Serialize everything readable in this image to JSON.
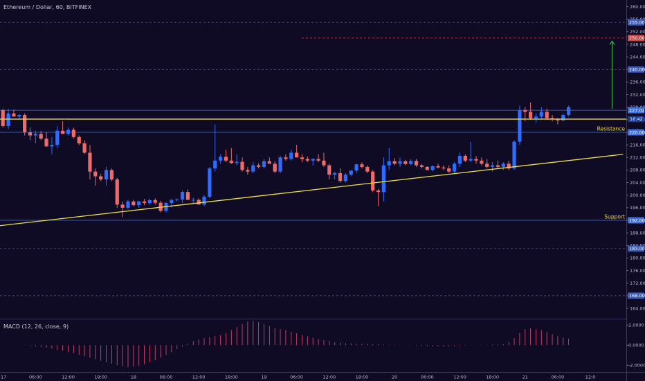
{
  "colors": {
    "background": "#0f0b24",
    "bull": "#2f6bff",
    "bear": "#ef6a6a",
    "grid": "#2c2a48",
    "trendline": "#f0e040",
    "level_line": "#4a6ed8",
    "target_line": "#d64545",
    "arrow": "#3bb04a",
    "macd_hist": "#d2456e"
  },
  "chart_data": [
    {
      "type": "candlestick",
      "title": "Ethereum / Dollar, 60, BITFINEX",
      "ylim": [
        160.7,
        262.1
      ],
      "log_scale": false,
      "grid": true,
      "y_ticks": [
        164,
        168,
        172,
        176,
        180,
        184,
        188,
        192,
        196,
        200,
        204,
        208,
        212,
        216,
        220,
        224,
        228,
        232,
        236,
        240,
        244,
        248,
        252,
        256,
        260
      ],
      "x_ticks": [
        {
          "label": "17",
          "i": 0
        },
        {
          "label": "06:00",
          "i": 6
        },
        {
          "label": "12:00",
          "i": 12
        },
        {
          "label": "18:00",
          "i": 18
        },
        {
          "label": "18",
          "i": 24
        },
        {
          "label": "06:00",
          "i": 30
        },
        {
          "label": "12:00",
          "i": 36
        },
        {
          "label": "18:00",
          "i": 42
        },
        {
          "label": "19",
          "i": 48
        },
        {
          "label": "06:00",
          "i": 54
        },
        {
          "label": "12:00",
          "i": 60
        },
        {
          "label": "18:00",
          "i": 66
        },
        {
          "label": "20",
          "i": 72
        },
        {
          "label": "06:00",
          "i": 78
        },
        {
          "label": "12:00",
          "i": 84
        },
        {
          "label": "18:00",
          "i": 90
        },
        {
          "label": "21",
          "i": 96
        },
        {
          "label": "06:00",
          "i": 102
        },
        {
          "label": "12:0",
          "i": 108
        }
      ],
      "candles": [
        [
          227.0,
          227.5,
          221.5,
          222.0
        ],
        [
          222.0,
          227.5,
          221.0,
          226.0
        ],
        [
          226.0,
          227.2,
          225.0,
          225.0
        ],
        [
          225.0,
          225.8,
          224.0,
          225.5
        ],
        [
          225.5,
          226.0,
          219.0,
          220.0
        ],
        [
          220.0,
          221.5,
          217.5,
          219.0
        ],
        [
          219.0,
          220.5,
          216.5,
          219.5
        ],
        [
          219.5,
          220.5,
          217.5,
          218.0
        ],
        [
          218.0,
          220.0,
          215.5,
          215.5
        ],
        [
          215.5,
          218.5,
          213.0,
          216.0
        ],
        [
          216.0,
          222.0,
          215.0,
          220.5
        ],
        [
          220.5,
          223.5,
          219.5,
          219.5
        ],
        [
          219.5,
          221.5,
          219.0,
          220.8
        ],
        [
          220.8,
          221.5,
          218.0,
          218.5
        ],
        [
          218.5,
          219.0,
          216.0,
          216.5
        ],
        [
          216.5,
          217.5,
          213.0,
          213.5
        ],
        [
          213.5,
          216.0,
          205.0,
          207.5
        ],
        [
          207.5,
          208.5,
          203.0,
          206.0
        ],
        [
          206.0,
          206.8,
          204.5,
          205.0
        ],
        [
          205.0,
          209.0,
          203.0,
          208.0
        ],
        [
          208.0,
          208.5,
          204.5,
          205.0
        ],
        [
          205.0,
          205.5,
          196.0,
          197.0
        ],
        [
          197.0,
          198.0,
          193.0,
          196.0
        ],
        [
          196.0,
          198.5,
          195.5,
          198.0
        ],
        [
          198.0,
          198.5,
          196.5,
          196.8
        ],
        [
          196.8,
          198.2,
          196.0,
          198.0
        ],
        [
          198.0,
          198.8,
          196.8,
          197.5
        ],
        [
          197.5,
          199.0,
          197.0,
          198.4
        ],
        [
          198.4,
          199.0,
          197.0,
          197.6
        ],
        [
          197.6,
          198.2,
          194.5,
          195.0
        ],
        [
          195.0,
          197.8,
          194.5,
          197.5
        ],
        [
          197.5,
          198.7,
          196.0,
          198.5
        ],
        [
          198.5,
          199.0,
          198.0,
          198.6
        ],
        [
          198.6,
          201.5,
          197.5,
          201.0
        ],
        [
          201.0,
          201.8,
          199.0,
          198.5
        ],
        [
          198.5,
          199.2,
          197.5,
          198.5
        ],
        [
          198.5,
          199.0,
          197.0,
          197.0
        ],
        [
          197.0,
          200.0,
          196.5,
          199.5
        ],
        [
          199.5,
          209.0,
          199.0,
          208.5
        ],
        [
          208.5,
          222.5,
          207.5,
          211.0
        ],
        [
          211.0,
          213.0,
          210.0,
          212.2
        ],
        [
          212.2,
          214.5,
          210.5,
          211.0
        ],
        [
          211.0,
          215.0,
          210.0,
          210.2
        ],
        [
          210.2,
          213.0,
          209.5,
          210.6
        ],
        [
          210.6,
          212.0,
          207.5,
          208.0
        ],
        [
          208.0,
          209.0,
          206.5,
          207.5
        ],
        [
          207.5,
          210.5,
          207.0,
          209.5
        ],
        [
          209.5,
          210.2,
          208.5,
          209.0
        ],
        [
          209.0,
          211.5,
          208.5,
          210.8
        ],
        [
          210.8,
          212.0,
          210.0,
          210.0
        ],
        [
          210.0,
          210.8,
          207.0,
          207.5
        ],
        [
          207.5,
          212.5,
          207.0,
          212.0
        ],
        [
          212.0,
          213.0,
          211.0,
          211.5
        ],
        [
          211.5,
          214.5,
          211.0,
          213.5
        ],
        [
          213.5,
          216.0,
          212.0,
          212.0
        ],
        [
          212.0,
          213.0,
          210.5,
          211.5
        ],
        [
          211.5,
          212.3,
          210.5,
          211.0
        ],
        [
          211.0,
          211.8,
          209.5,
          211.5
        ],
        [
          211.5,
          213.0,
          210.5,
          211.0
        ],
        [
          211.0,
          213.5,
          209.0,
          209.5
        ],
        [
          209.5,
          210.0,
          205.0,
          206.5
        ],
        [
          206.5,
          207.5,
          205.0,
          207.0
        ],
        [
          207.0,
          208.5,
          204.0,
          204.5
        ],
        [
          204.5,
          207.0,
          204.0,
          206.5
        ],
        [
          206.5,
          208.0,
          206.0,
          207.8
        ],
        [
          207.8,
          210.0,
          207.0,
          209.8
        ],
        [
          209.8,
          210.5,
          208.5,
          209.0
        ],
        [
          209.0,
          209.5,
          207.0,
          207.5
        ],
        [
          207.5,
          208.0,
          201.0,
          201.5
        ],
        [
          201.5,
          202.0,
          196.5,
          201.0
        ],
        [
          201.0,
          212.0,
          198.0,
          209.5
        ],
        [
          209.5,
          215.0,
          208.0,
          210.8
        ],
        [
          210.8,
          211.8,
          209.5,
          210.0
        ],
        [
          210.0,
          212.0,
          209.0,
          210.8
        ],
        [
          210.8,
          211.2,
          209.5,
          209.9
        ],
        [
          209.9,
          211.5,
          209.5,
          210.9
        ],
        [
          210.9,
          211.5,
          209.0,
          209.5
        ],
        [
          209.5,
          210.0,
          208.5,
          209.0
        ],
        [
          209.0,
          209.2,
          208.0,
          208.0
        ],
        [
          208.0,
          209.5,
          207.5,
          209.2
        ],
        [
          209.2,
          210.0,
          208.5,
          208.8
        ],
        [
          208.8,
          209.5,
          208.0,
          208.5
        ],
        [
          208.5,
          209.5,
          207.0,
          207.5
        ],
        [
          207.5,
          210.5,
          207.0,
          210.0
        ],
        [
          210.0,
          213.5,
          209.0,
          212.5
        ],
        [
          212.5,
          213.0,
          210.5,
          211.0
        ],
        [
          211.0,
          217.0,
          210.5,
          211.5
        ],
        [
          211.5,
          212.5,
          210.0,
          211.0
        ],
        [
          211.0,
          212.0,
          209.5,
          210.0
        ],
        [
          210.0,
          211.5,
          208.5,
          209.0
        ],
        [
          209.0,
          210.5,
          207.5,
          209.5
        ],
        [
          209.5,
          211.0,
          208.5,
          209.0
        ],
        [
          209.0,
          210.5,
          208.0,
          210.0
        ],
        [
          210.0,
          211.0,
          208.0,
          208.5
        ],
        [
          208.5,
          217.5,
          208.0,
          217.0
        ],
        [
          217.0,
          228.5,
          216.0,
          227.0
        ],
        [
          227.0,
          228.0,
          223.5,
          226.5
        ],
        [
          226.5,
          229.5,
          224.0,
          224.5
        ],
        [
          224.5,
          226.0,
          223.0,
          225.0
        ],
        [
          225.0,
          228.0,
          224.0,
          226.5
        ],
        [
          226.5,
          227.5,
          224.0,
          224.5
        ],
        [
          224.5,
          225.5,
          223.5,
          224.2
        ],
        [
          224.2,
          224.5,
          222.5,
          223.8
        ],
        [
          223.8,
          226.0,
          223.5,
          225.5
        ],
        [
          225.5,
          228.5,
          225.0,
          228.0
        ]
      ],
      "level_tags": [
        {
          "label": "255.00",
          "value": 255.0,
          "style": "dashed"
        },
        {
          "label": "250.00",
          "value": 250.0,
          "style": "target"
        },
        {
          "label": "240.00",
          "value": 240.0,
          "style": "dashed"
        },
        {
          "label": "227.02",
          "value": 227.02,
          "style": "solid"
        },
        {
          "label": "220.00",
          "value": 220.0,
          "style": "solid"
        },
        {
          "label": "192.00",
          "value": 192.0,
          "style": "solid"
        },
        {
          "label": "183.00",
          "value": 183.0,
          "style": "dashed"
        },
        {
          "label": "168.00",
          "value": 168.0,
          "style": "dashed"
        }
      ],
      "countdown": {
        "label": "16:42",
        "value": 224.2
      },
      "annotations": [
        {
          "label": "Resistance",
          "value": 220.0
        },
        {
          "label": "Support",
          "value": 192.0
        }
      ],
      "lines": [
        {
          "name": "upper-horizontal",
          "value": 224.2
        },
        {
          "name": "ascending-trendline",
          "from": {
            "i": -2,
            "value": 190.0
          },
          "to": {
            "i": 114,
            "value": 213.0
          }
        }
      ],
      "arrow": {
        "i": 112,
        "from": 227.5,
        "to": 249.0
      }
    },
    {
      "type": "bar",
      "title": "MACD (12, 26, close, 9)",
      "ylim": [
        -2.6,
        2.5
      ],
      "y_ticks": [
        2.0,
        0.0,
        -2.0
      ],
      "y_tick_labels": [
        "2.0000",
        "0.0000",
        "-2.0000"
      ],
      "start_i": 4,
      "values": [
        0.02,
        -0.05,
        -0.1,
        -0.18,
        -0.25,
        -0.35,
        -0.45,
        -0.55,
        -0.68,
        -0.8,
        -0.95,
        -1.1,
        -1.25,
        -1.4,
        -1.55,
        -1.7,
        -1.85,
        -2.0,
        -2.1,
        -2.2,
        -2.15,
        -2.05,
        -1.9,
        -1.7,
        -1.5,
        -1.25,
        -1.0,
        -0.7,
        -0.4,
        -0.15,
        0.15,
        0.4,
        0.55,
        0.7,
        0.8,
        0.9,
        1.0,
        1.2,
        1.5,
        1.8,
        2.1,
        2.35,
        2.4,
        2.3,
        2.1,
        1.9,
        1.7,
        1.6,
        1.5,
        1.35,
        1.2,
        1.05,
        0.9,
        0.75,
        0.6,
        0.5,
        0.4,
        0.3,
        0.25,
        0.2,
        0.18,
        0.16,
        0.14,
        0.12,
        0.1,
        0.08,
        0.06,
        0.04,
        0.03,
        0.02,
        0.01,
        -0.02,
        -0.05,
        -0.08,
        -0.1,
        -0.12,
        -0.13,
        -0.12,
        -0.1,
        -0.08,
        -0.06,
        -0.04,
        -0.02,
        0.0,
        0.02,
        0.04,
        0.06,
        0.08,
        0.1,
        0.3,
        0.7,
        1.2,
        1.6,
        1.7,
        1.6,
        1.5,
        1.3,
        1.1,
        0.9,
        0.75,
        0.65
      ]
    }
  ]
}
